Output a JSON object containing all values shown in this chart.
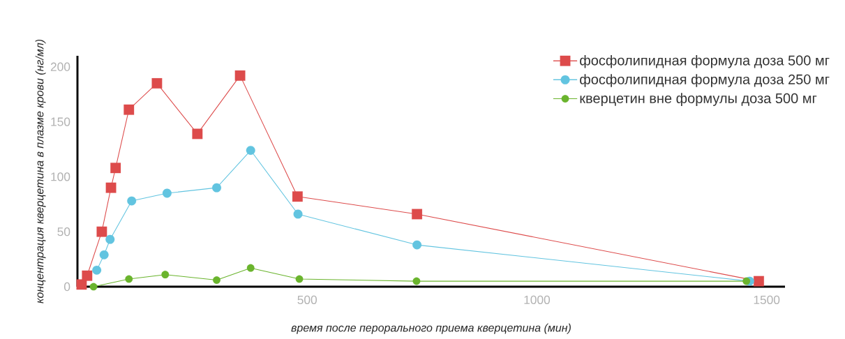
{
  "chart_data": {
    "type": "line",
    "xlabel": "*время после перорального приема кверцетина (мин)*",
    "ylabel": "*концентрация кверцетина в плазме крови (нг/мл)*",
    "xlim": [
      0,
      1540
    ],
    "ylim": [
      0,
      210
    ],
    "xticks": [
      500,
      1000,
      1500
    ],
    "yticks": [
      0,
      50,
      100,
      150,
      200
    ],
    "grid": false,
    "legend": "top right",
    "line_style": "solid",
    "series": [
      {
        "name": "фосфолипидная формула доза 500 мг",
        "color": "#dd4b4b",
        "marker": "square",
        "x": [
          9,
          21,
          53,
          73,
          83,
          112,
          173,
          261,
          354,
          479,
          739,
          1483
        ],
        "values": [
          2,
          10,
          50,
          90,
          108,
          161,
          185,
          139,
          192,
          82,
          66,
          5
        ]
      },
      {
        "name": "фосфолипидная формула доза 250 мг",
        "color": "#62c4e0",
        "marker": "circle",
        "x": [
          42,
          58,
          71,
          118,
          195,
          303,
          377,
          480,
          739,
          1463
        ],
        "values": [
          15,
          29,
          43,
          78,
          85,
          90,
          124,
          66,
          38,
          5
        ]
      },
      {
        "name": "кверцетин вне формулы доза 500 мг",
        "color": "#6ab42d",
        "marker": "circle",
        "x": [
          35,
          112,
          191,
          303,
          377,
          483,
          738,
          1456
        ],
        "values": [
          0,
          7,
          11,
          6,
          17,
          7,
          5,
          5
        ]
      }
    ]
  }
}
